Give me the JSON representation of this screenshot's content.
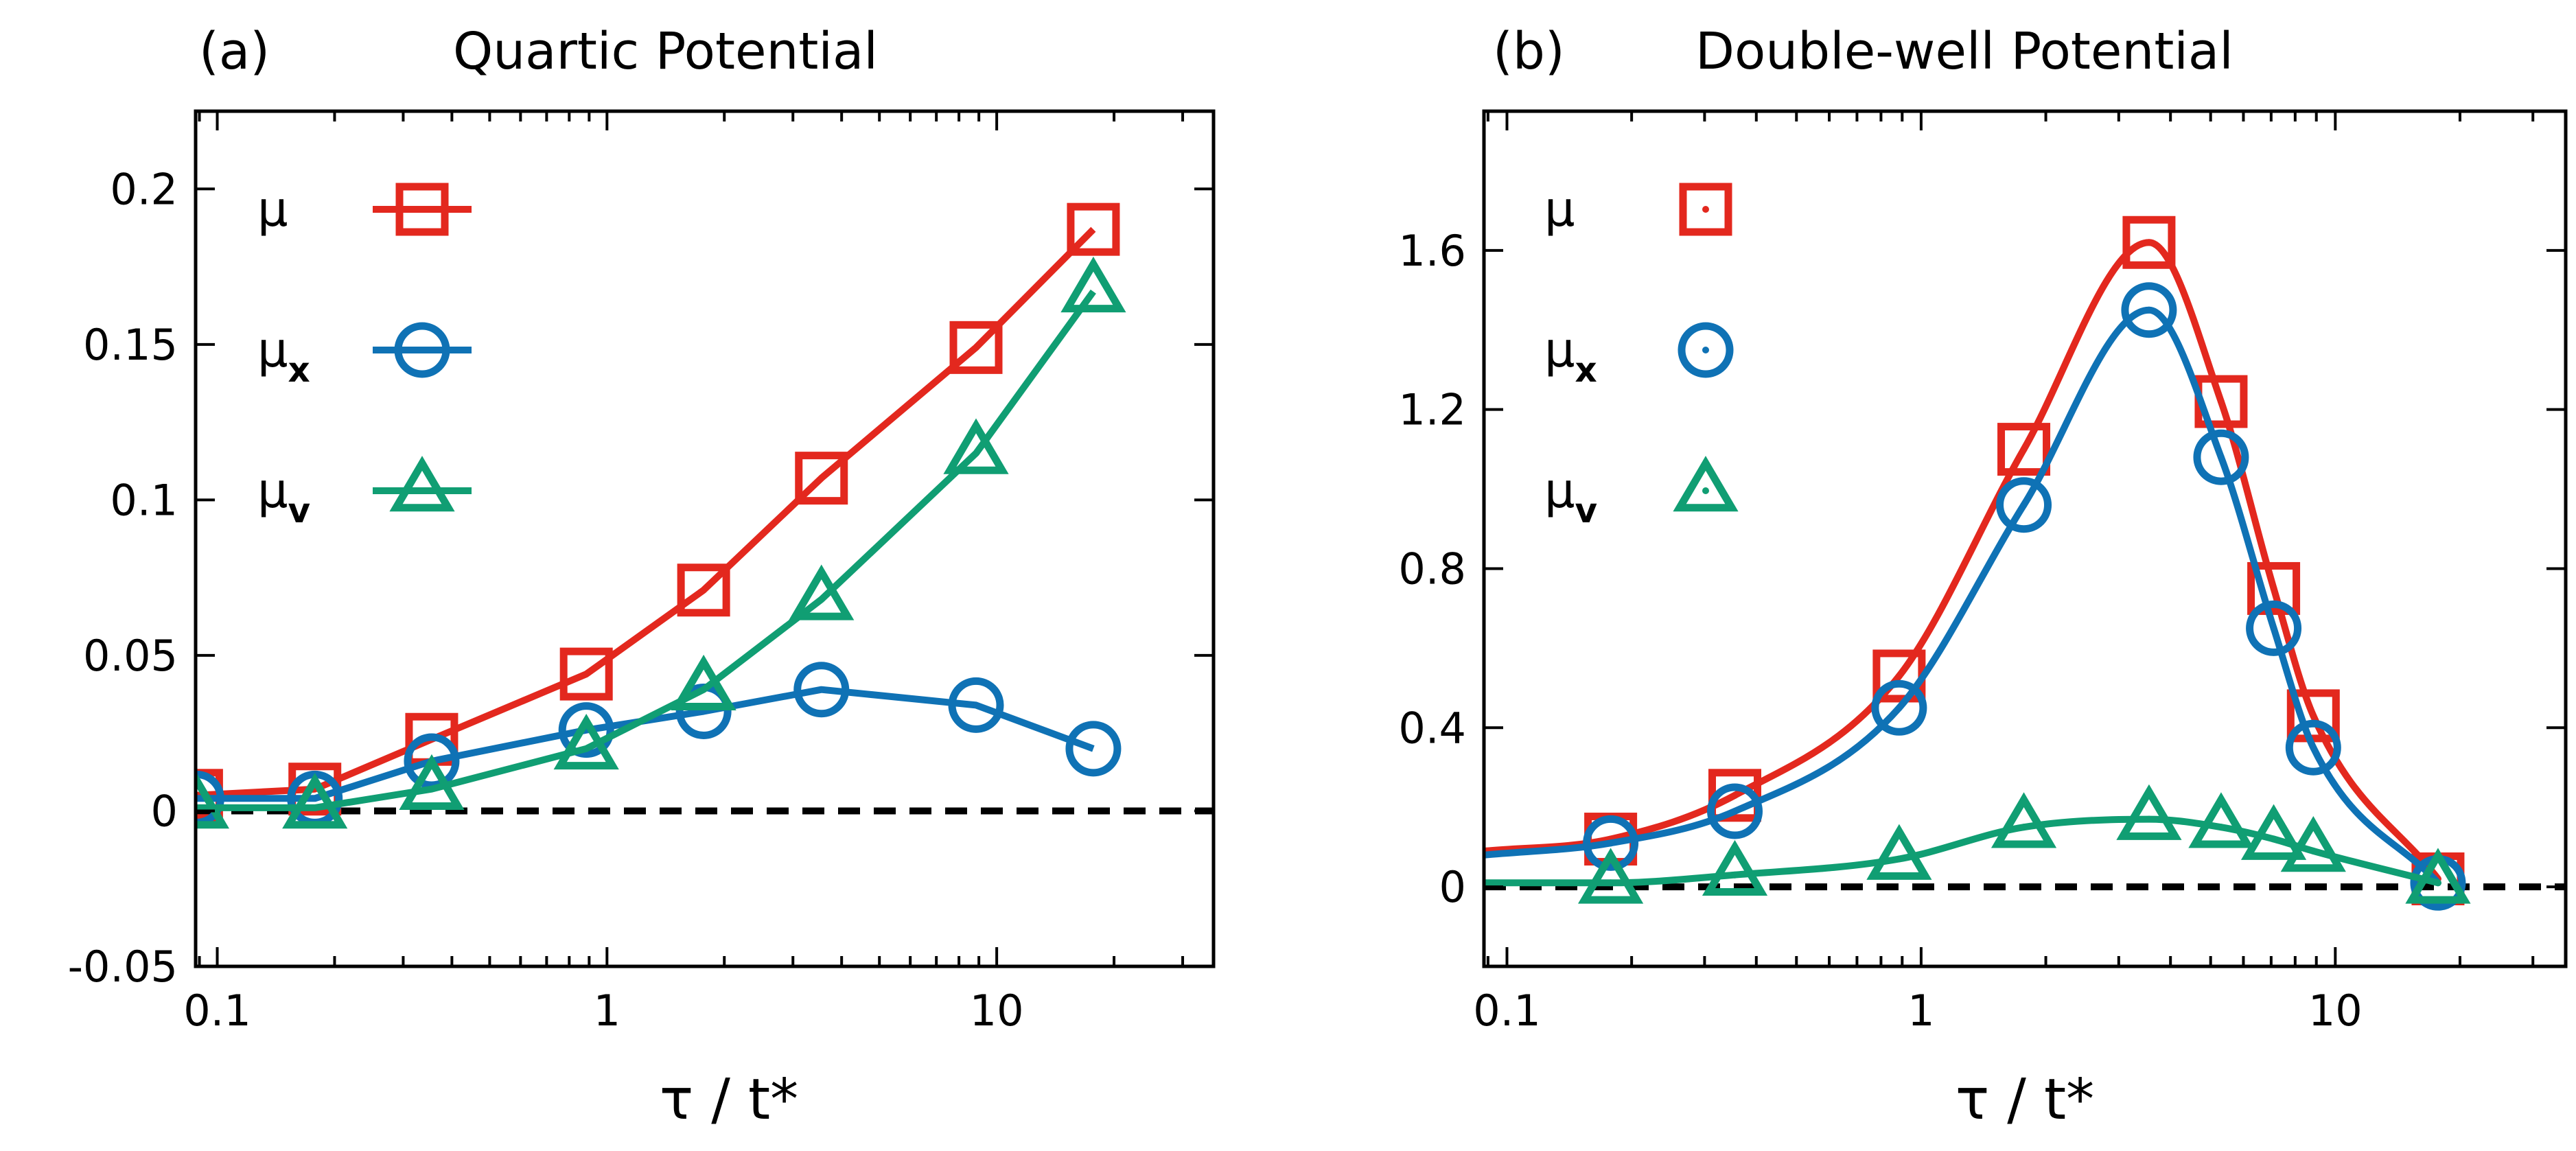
{
  "chart_data": [
    {
      "type": "line",
      "panel_label": "(a)",
      "title": "Quartic Potential",
      "xlabel": "τ / t*",
      "ylabel": "",
      "xscale": "log",
      "xlim": [
        0.088,
        36
      ],
      "ylim": [
        -0.05,
        0.225
      ],
      "xticks": [
        0.1,
        1,
        10
      ],
      "xtick_labels": [
        "0.1",
        "1",
        "10"
      ],
      "yticks": [
        -0.05,
        0,
        0.05,
        0.1,
        0.15,
        0.2
      ],
      "ytick_labels": [
        "-0.05",
        "0",
        "0.05",
        "0.1",
        "0.15",
        "0.2"
      ],
      "reference_line": {
        "y": 0,
        "style": "dashed",
        "color": "#000000"
      },
      "legend_position": "top-left",
      "series": [
        {
          "name": "μ",
          "subscript": "",
          "marker": "square",
          "marker_dot": false,
          "color": "#e3281e",
          "connect": "straight",
          "x": [
            0.0885,
            0.178,
            0.355,
            0.885,
            1.77,
            3.55,
            8.85,
            17.7
          ],
          "y": [
            0.005,
            0.007,
            0.023,
            0.044,
            0.071,
            0.107,
            0.149,
            0.187
          ]
        },
        {
          "name": "μ",
          "subscript": "x",
          "marker": "circle",
          "marker_dot": false,
          "color": "#0f72b5",
          "connect": "straight",
          "x": [
            0.0885,
            0.178,
            0.355,
            0.885,
            1.77,
            3.55,
            8.85,
            17.7
          ],
          "y": [
            0.004,
            0.004,
            0.016,
            0.026,
            0.032,
            0.039,
            0.034,
            0.02
          ]
        },
        {
          "name": "μ",
          "subscript": "v",
          "marker": "triangle",
          "marker_dot": false,
          "color": "#109e73",
          "connect": "straight",
          "x": [
            0.0885,
            0.178,
            0.355,
            0.885,
            1.77,
            3.55,
            8.85,
            17.7
          ],
          "y": [
            0.001,
            0.001,
            0.007,
            0.02,
            0.039,
            0.068,
            0.115,
            0.167
          ]
        }
      ]
    },
    {
      "type": "line",
      "panel_label": "(b)",
      "title": "Double-well Potential",
      "xlabel": "τ / t*",
      "ylabel": "",
      "xscale": "log",
      "xlim": [
        0.088,
        36
      ],
      "ylim": [
        -0.2,
        1.95
      ],
      "xticks": [
        0.1,
        1,
        10
      ],
      "xtick_labels": [
        "0.1",
        "1",
        "10"
      ],
      "yticks": [
        0,
        0.4,
        0.8,
        1.2,
        1.6
      ],
      "ytick_labels": [
        "0",
        "0.4",
        "0.8",
        "1.2",
        "1.6"
      ],
      "reference_line": {
        "y": 0,
        "style": "dashed",
        "color": "#000000"
      },
      "legend_position": "top-left",
      "series": [
        {
          "name": "μ",
          "subscript": "",
          "marker": "square",
          "marker_dot": true,
          "color": "#e3281e",
          "connect": "smooth",
          "x": [
            0.178,
            0.355,
            0.885,
            1.77,
            3.55,
            5.3,
            7.1,
            8.85,
            17.7
          ],
          "y": [
            0.12,
            0.23,
            0.53,
            1.1,
            1.62,
            1.22,
            0.75,
            0.43,
            0.02
          ],
          "curve_x": [
            0.0885,
            0.178,
            0.355,
            0.885,
            1.77,
            3.55,
            5.3,
            7.1,
            8.85,
            17.7
          ],
          "curve_y": [
            0.09,
            0.12,
            0.23,
            0.53,
            1.1,
            1.62,
            1.22,
            0.75,
            0.43,
            0.02
          ]
        },
        {
          "name": "μ",
          "subscript": "x",
          "marker": "circle",
          "marker_dot": true,
          "color": "#0f72b5",
          "connect": "smooth",
          "x": [
            0.178,
            0.355,
            0.885,
            1.77,
            3.55,
            5.3,
            7.1,
            8.85,
            17.7
          ],
          "y": [
            0.11,
            0.19,
            0.45,
            0.96,
            1.45,
            1.08,
            0.65,
            0.35,
            0.01
          ],
          "curve_x": [
            0.0885,
            0.178,
            0.355,
            0.885,
            1.77,
            3.55,
            5.3,
            7.1,
            8.85,
            17.7
          ],
          "curve_y": [
            0.08,
            0.11,
            0.19,
            0.45,
            0.96,
            1.45,
            1.08,
            0.65,
            0.35,
            0.01
          ]
        },
        {
          "name": "μ",
          "subscript": "v",
          "marker": "triangle",
          "marker_dot": true,
          "color": "#109e73",
          "connect": "smooth",
          "x": [
            0.178,
            0.355,
            0.885,
            1.77,
            3.55,
            5.3,
            7.1,
            8.85,
            17.7
          ],
          "y": [
            0.01,
            0.03,
            0.07,
            0.15,
            0.17,
            0.15,
            0.12,
            0.09,
            0.01
          ],
          "curve_x": [
            0.0885,
            0.178,
            0.355,
            0.885,
            1.77,
            3.55,
            5.3,
            7.1,
            8.85,
            17.7
          ],
          "curve_y": [
            0.01,
            0.01,
            0.03,
            0.07,
            0.15,
            0.17,
            0.15,
            0.12,
            0.09,
            0.01
          ]
        }
      ]
    }
  ]
}
